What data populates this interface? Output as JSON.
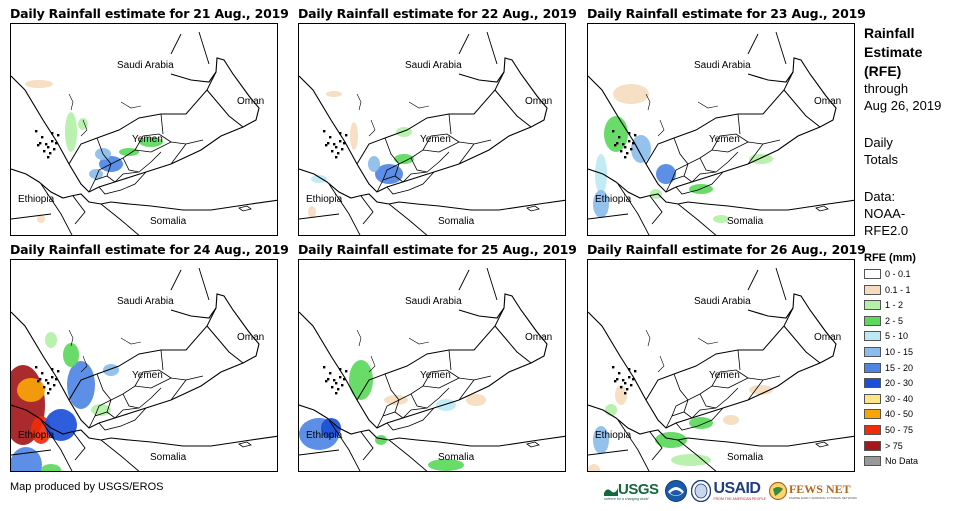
{
  "panels": [
    {
      "title": "Daily Rainfall estimate for 21 Aug., 2019"
    },
    {
      "title": "Daily Rainfall estimate for 22 Aug., 2019"
    },
    {
      "title": "Daily Rainfall estimate for 23 Aug., 2019"
    },
    {
      "title": "Daily Rainfall estimate for 24 Aug., 2019"
    },
    {
      "title": "Daily Rainfall estimate for 25 Aug., 2019"
    },
    {
      "title": "Daily Rainfall estimate for 26 Aug., 2019"
    }
  ],
  "map_labels": {
    "saudi": "Saudi Arabia",
    "oman": "Oman",
    "yemen": "Yemen",
    "ethiopia": "Ethiopia",
    "somalia": "Somalia"
  },
  "sidebar": {
    "title_line1": "Rainfall",
    "title_line2": "Estimate",
    "title_line3": "(RFE)",
    "through": "through",
    "date": "Aug 26, 2019",
    "daily": "Daily",
    "totals": "Totals",
    "data_label": "Data:",
    "source_line1": "NOAA-",
    "source_line2": "RFE2.0"
  },
  "legend": {
    "title": "RFE (mm)",
    "items": [
      {
        "label": "0 - 0.1",
        "color": "#ffffff"
      },
      {
        "label": "0.1 - 1",
        "color": "#f5dcbe"
      },
      {
        "label": "1 - 2",
        "color": "#b4f0a8"
      },
      {
        "label": "2 - 5",
        "color": "#5cd85c"
      },
      {
        "label": "5 - 10",
        "color": "#bde9f5"
      },
      {
        "label": "10 - 15",
        "color": "#8cbcec"
      },
      {
        "label": "15 - 20",
        "color": "#4f86e4"
      },
      {
        "label": "20 - 30",
        "color": "#1c50d8"
      },
      {
        "label": "30 - 40",
        "color": "#fbe48a"
      },
      {
        "label": "40 - 50",
        "color": "#f6a40a"
      },
      {
        "label": "50 - 75",
        "color": "#f02c0a"
      },
      {
        "label": "> 75",
        "color": "#a4181c"
      },
      {
        "label": "No Data",
        "color": "#999999"
      }
    ]
  },
  "credit": "Map produced by USGS/EROS",
  "logos": {
    "usgs": "USGS",
    "usgs_tagline": "science for a changing world",
    "usaid": "USAID",
    "usaid_tagline": "FROM THE AMERICAN PEOPLE",
    "fews": "FEWS NET",
    "fews_tagline": "FAMINE EARLY WARNING SYSTEMS NETWORK"
  }
}
